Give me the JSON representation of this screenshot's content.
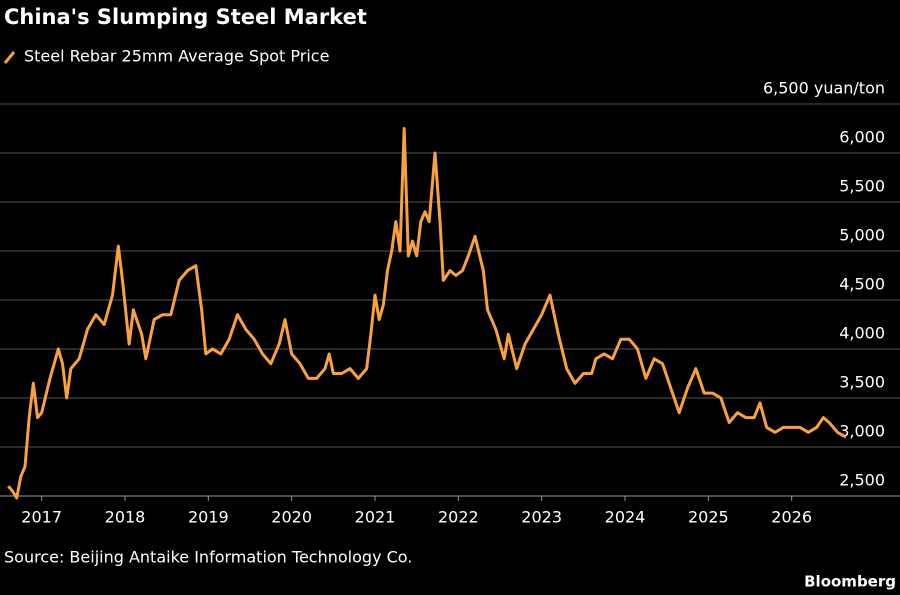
{
  "chart_data": {
    "type": "line",
    "title": "China's Slumping Steel Market",
    "source": "Source: Beijing Antaike Information Technology Co.",
    "credit": "Bloomberg",
    "x": [
      2016.6,
      2016.65,
      2016.7,
      2016.75,
      2016.8,
      2016.85,
      2016.9,
      2016.95,
      2017.0,
      2017.1,
      2017.2,
      2017.25,
      2017.3,
      2017.35,
      2017.45,
      2017.55,
      2017.65,
      2017.75,
      2017.85,
      2017.92,
      2017.97,
      2018.05,
      2018.1,
      2018.2,
      2018.25,
      2018.35,
      2018.45,
      2018.55,
      2018.65,
      2018.75,
      2018.85,
      2018.92,
      2018.97,
      2019.05,
      2019.15,
      2019.25,
      2019.35,
      2019.45,
      2019.55,
      2019.65,
      2019.75,
      2019.85,
      2019.92,
      2020.0,
      2020.1,
      2020.2,
      2020.3,
      2020.4,
      2020.45,
      2020.5,
      2020.6,
      2020.7,
      2020.8,
      2020.9,
      2020.95,
      2021.0,
      2021.05,
      2021.1,
      2021.15,
      2021.2,
      2021.25,
      2021.3,
      2021.35,
      2021.4,
      2021.45,
      2021.5,
      2021.55,
      2021.6,
      2021.65,
      2021.72,
      2021.78,
      2021.82,
      2021.9,
      2021.97,
      2022.05,
      2022.12,
      2022.2,
      2022.3,
      2022.35,
      2022.45,
      2022.55,
      2022.6,
      2022.7,
      2022.8,
      2022.9,
      2023.0,
      2023.1,
      2023.2,
      2023.3,
      2023.4,
      2023.5,
      2023.6,
      2023.65,
      2023.75,
      2023.85,
      2023.95,
      2024.05,
      2024.15,
      2024.25,
      2024.35,
      2024.45,
      2024.55,
      2024.65,
      2024.75,
      2024.85,
      2024.95,
      2025.05,
      2025.15,
      2025.25,
      2025.35,
      2025.45,
      2025.55,
      2025.62,
      2025.7,
      2025.8,
      2025.9,
      2026.0,
      2026.1,
      2026.2,
      2026.3,
      2026.38,
      2026.45,
      2026.55,
      2026.65
    ],
    "series": [
      {
        "name": "Steel Rebar 25mm Average Spot Price",
        "color": "#f7a23c",
        "values": [
          2600,
          2550,
          2480,
          2700,
          2800,
          3300,
          3650,
          3300,
          3350,
          3700,
          4000,
          3850,
          3500,
          3800,
          3900,
          4200,
          4350,
          4250,
          4550,
          5050,
          4700,
          4050,
          4400,
          4150,
          3900,
          4300,
          4350,
          4350,
          4700,
          4800,
          4850,
          4400,
          3950,
          4000,
          3950,
          4100,
          4350,
          4200,
          4100,
          3950,
          3850,
          4050,
          4300,
          3950,
          3850,
          3700,
          3700,
          3800,
          3950,
          3750,
          3750,
          3800,
          3700,
          3800,
          4150,
          4550,
          4300,
          4450,
          4800,
          5000,
          5300,
          5000,
          6250,
          4950,
          5100,
          4950,
          5300,
          5400,
          5300,
          6000,
          5300,
          4700,
          4800,
          4750,
          4800,
          4950,
          5150,
          4800,
          4400,
          4200,
          3900,
          4150,
          3800,
          4050,
          4200,
          4350,
          4550,
          4150,
          3800,
          3650,
          3750,
          3750,
          3900,
          3950,
          3900,
          4100,
          4100,
          4000,
          3700,
          3900,
          3850,
          3600,
          3350,
          3600,
          3800,
          3550,
          3550,
          3500,
          3250,
          3350,
          3300,
          3300,
          3450,
          3200,
          3150,
          3200,
          3200,
          3200,
          3150,
          3200,
          3300,
          3250,
          3150,
          3100
        ]
      }
    ],
    "xlim": [
      2016.5,
      2027.3
    ],
    "xticks": [
      2017,
      2018,
      2019,
      2020,
      2021,
      2022,
      2023,
      2024,
      2025,
      2026
    ],
    "ylim": [
      2500,
      6500
    ],
    "yticks": [
      {
        "value": 2500,
        "label": "2,500"
      },
      {
        "value": 3000,
        "label": "3,000"
      },
      {
        "value": 3500,
        "label": "3,500"
      },
      {
        "value": 4000,
        "label": "4,000"
      },
      {
        "value": 4500,
        "label": "4,500"
      },
      {
        "value": 5000,
        "label": "5,000"
      },
      {
        "value": 5500,
        "label": "5,500"
      },
      {
        "value": 6000,
        "label": "6,000"
      },
      {
        "value": 6500,
        "label": "6,500 yuan/ton"
      }
    ],
    "grid": true
  }
}
